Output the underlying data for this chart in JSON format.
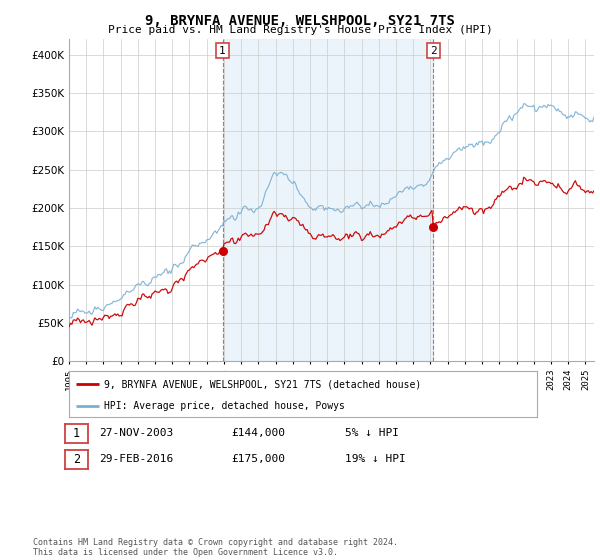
{
  "title": "9, BRYNFA AVENUE, WELSHPOOL, SY21 7TS",
  "subtitle": "Price paid vs. HM Land Registry's House Price Index (HPI)",
  "legend_line1": "9, BRYNFA AVENUE, WELSHPOOL, SY21 7TS (detached house)",
  "legend_line2": "HPI: Average price, detached house, Powys",
  "transaction1_label": "1",
  "transaction1_date": "27-NOV-2003",
  "transaction1_price": "£144,000",
  "transaction1_hpi": "5% ↓ HPI",
  "transaction2_label": "2",
  "transaction2_date": "29-FEB-2016",
  "transaction2_price": "£175,000",
  "transaction2_hpi": "19% ↓ HPI",
  "footer": "Contains HM Land Registry data © Crown copyright and database right 2024.\nThis data is licensed under the Open Government Licence v3.0.",
  "red_color": "#cc0000",
  "blue_color": "#7ab0d4",
  "blue_fill": "#ddeef7",
  "vline_color": "#cc4444",
  "background_color": "#ffffff",
  "grid_color": "#cccccc",
  "ylim": [
    0,
    420000
  ],
  "yticks": [
    0,
    50000,
    100000,
    150000,
    200000,
    250000,
    300000,
    350000,
    400000
  ],
  "transaction1_x": 2003.92,
  "transaction1_y": 144000,
  "transaction2_x": 2016.17,
  "transaction2_y": 175000,
  "xmin": 1995.0,
  "xmax": 2025.5
}
